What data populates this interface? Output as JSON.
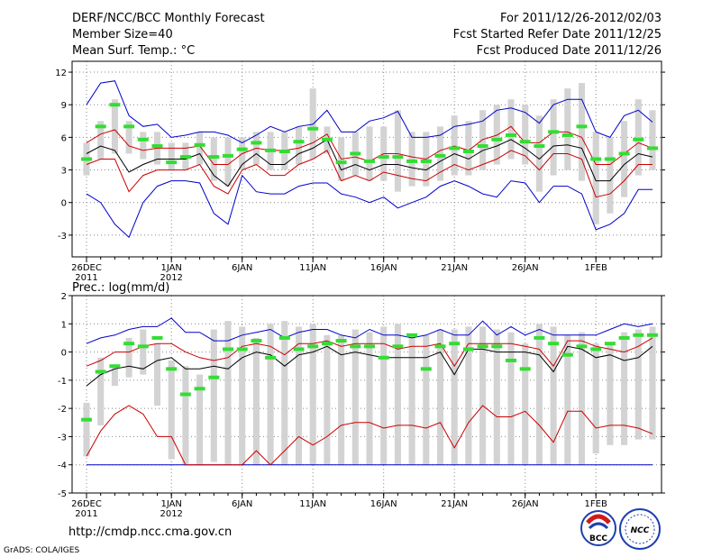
{
  "header": {
    "title": "DERF/NCC/BCC Monthly Forecast",
    "member_size": "Member Size=40",
    "variable": "Mean Surf. Temp.: °C",
    "period": "For 2011/12/26-2012/02/03",
    "fcst_started": "Fcst Started Refer Date 2011/12/25",
    "fcst_produced": "Fcst Produced Date 2011/12/26"
  },
  "footer": {
    "url": "http://cmdp.ncc.cma.gov.cn",
    "credit": "GrADS: COLA/IGES",
    "logo_bcc": "BCC",
    "logo_ncc": "NCC"
  },
  "colors": {
    "mean": "#000000",
    "spread": "#cc0000",
    "extreme": "#0000cc",
    "box": "#d3d3d3",
    "obs": "#33dd33"
  },
  "chart_data": [
    {
      "type": "box-line",
      "title": "Mean Surf. Temp.: °C",
      "ylim": [
        -5,
        13
      ],
      "yticks": [
        -3,
        0,
        3,
        6,
        9,
        12
      ],
      "x_ticks": [
        {
          "day": 1,
          "label": "26DEC",
          "year": "2011"
        },
        {
          "day": 7,
          "label": "1JAN",
          "year": "2012"
        },
        {
          "day": 12,
          "label": "6JAN",
          "year": ""
        },
        {
          "day": 17,
          "label": "11JAN",
          "year": ""
        },
        {
          "day": 22,
          "label": "16JAN",
          "year": ""
        },
        {
          "day": 27,
          "label": "21JAN",
          "year": ""
        },
        {
          "day": 32,
          "label": "26JAN",
          "year": ""
        },
        {
          "day": 37,
          "label": "1FEB",
          "year": ""
        }
      ],
      "series": [
        {
          "name": "max",
          "values": [
            9,
            11,
            11.2,
            8,
            7,
            7.2,
            6,
            6.2,
            6.5,
            6.5,
            6.2,
            5.5,
            6.2,
            7,
            6.5,
            7,
            7.2,
            8.5,
            6.5,
            6.5,
            7.5,
            7.8,
            8.4,
            6,
            6,
            6.2,
            7,
            7.2,
            7.5,
            8.5,
            8.7,
            8.3,
            7.3,
            9,
            9.5,
            9.5,
            6.5,
            6,
            8,
            8.5,
            7.4
          ]
        },
        {
          "name": "p75",
          "values": [
            5.5,
            6.3,
            6.7,
            5.2,
            4.8,
            5,
            5,
            5,
            5.2,
            3.5,
            3.5,
            4.5,
            5,
            4.8,
            4.8,
            5,
            5.5,
            6.3,
            4,
            4.2,
            3.8,
            4.5,
            4.5,
            4.2,
            4,
            4.8,
            5.2,
            4.8,
            5.8,
            6.2,
            7,
            5.5,
            5.5,
            6.5,
            6.5,
            6,
            3.5,
            3.5,
            4.5,
            5.5,
            5
          ]
        },
        {
          "name": "mean",
          "values": [
            4.5,
            5.2,
            4.8,
            2.8,
            3.5,
            4,
            4,
            4,
            4.5,
            2.5,
            1.5,
            3.5,
            4.5,
            3.5,
            3.5,
            4.5,
            5,
            5.8,
            3,
            3.5,
            3,
            3.5,
            3.5,
            3.2,
            3,
            3.8,
            4.5,
            4,
            4.8,
            5.2,
            5.8,
            5,
            4,
            5.2,
            5.3,
            5,
            2,
            2,
            3.5,
            4.5,
            4.2
          ]
        },
        {
          "name": "p25",
          "values": [
            3.5,
            4,
            4,
            1,
            2.5,
            3,
            3,
            3,
            3.5,
            1.5,
            0.8,
            3,
            3.5,
            2.5,
            2.5,
            3.5,
            4,
            4.8,
            2,
            2.5,
            2,
            2.8,
            2.5,
            2.2,
            2,
            2.8,
            3.5,
            3,
            3.5,
            4,
            4.8,
            4.3,
            3,
            4.5,
            4.5,
            4,
            0.5,
            0.8,
            2,
            3.5,
            3.5
          ]
        },
        {
          "name": "min",
          "values": [
            0.8,
            0,
            -2,
            -3.2,
            0,
            1.5,
            2,
            2,
            1.8,
            -1,
            -2,
            2.5,
            1,
            0.8,
            0.8,
            1.5,
            1.8,
            1.8,
            0.8,
            0.5,
            0,
            0.5,
            -0.5,
            0,
            0.5,
            1.5,
            2,
            1.5,
            0.8,
            0.5,
            2,
            1.8,
            0,
            1.5,
            1.5,
            0.8,
            -2.5,
            -2,
            -1,
            1.2,
            1.2
          ]
        },
        {
          "name": "obs",
          "values": [
            4,
            7,
            9,
            7,
            5.8,
            5.2,
            3.7,
            4.2,
            5.3,
            4.2,
            4.3,
            4.9,
            5.5,
            4.8,
            4.7,
            5.6,
            6.8,
            5.8,
            3.7,
            4.5,
            3.8,
            4.2,
            4.2,
            3.8,
            3.8,
            4.3,
            5,
            4.7,
            5.2,
            5.8,
            6.2,
            5.6,
            5.2,
            6.5,
            6.2,
            7,
            4,
            4,
            4.5,
            5.8,
            5
          ]
        },
        {
          "name": "box_top",
          "values": [
            5.5,
            7.5,
            9.5,
            7.5,
            6.5,
            6.5,
            5.5,
            5.5,
            6.5,
            6,
            6,
            6,
            6.5,
            6.5,
            6.5,
            7,
            10.5,
            7,
            6,
            6.5,
            7,
            7,
            8.5,
            6.5,
            6.5,
            7,
            8,
            7.5,
            8.5,
            9,
            9.5,
            9,
            8,
            9.5,
            10.5,
            11,
            6.5,
            6,
            7.5,
            9.5,
            8.5
          ]
        },
        {
          "name": "box_bottom",
          "values": [
            2.5,
            4,
            4.5,
            4.5,
            4,
            3.5,
            3,
            3,
            3.5,
            2,
            1.5,
            3,
            3.5,
            3,
            3,
            3.5,
            4,
            4.5,
            2,
            2.5,
            2,
            2,
            1,
            1.5,
            1.5,
            2,
            2.5,
            2.5,
            3,
            3.5,
            4,
            3.5,
            1,
            2.5,
            3,
            2,
            -2,
            -1,
            0.5,
            2.5,
            3
          ]
        }
      ]
    },
    {
      "type": "box-line",
      "title": "Prec.: log(mm/d)",
      "ylim": [
        -5,
        2
      ],
      "yticks": [
        -5,
        -4,
        -3,
        -2,
        -1,
        0,
        1,
        2
      ],
      "x_ticks": [
        {
          "day": 1,
          "label": "26DEC",
          "year": "2011"
        },
        {
          "day": 7,
          "label": "1JAN",
          "year": "2012"
        },
        {
          "day": 12,
          "label": "6JAN",
          "year": ""
        },
        {
          "day": 17,
          "label": "11JAN",
          "year": ""
        },
        {
          "day": 22,
          "label": "16JAN",
          "year": ""
        },
        {
          "day": 27,
          "label": "21JAN",
          "year": ""
        },
        {
          "day": 32,
          "label": "26JAN",
          "year": ""
        },
        {
          "day": 37,
          "label": "1FEB",
          "year": ""
        }
      ],
      "series": [
        {
          "name": "max",
          "values": [
            0.3,
            0.5,
            0.6,
            0.8,
            0.9,
            0.9,
            1.2,
            0.7,
            0.7,
            0.4,
            0.4,
            0.6,
            0.7,
            0.8,
            0.5,
            0.7,
            0.8,
            0.8,
            0.6,
            0.5,
            0.8,
            0.6,
            0.6,
            0.5,
            0.6,
            0.8,
            0.6,
            0.6,
            1.1,
            0.6,
            0.9,
            0.6,
            0.8,
            0.6,
            0.6,
            0.6,
            0.6,
            0.8,
            1.0,
            0.9,
            1.0
          ]
        },
        {
          "name": "p75",
          "values": [
            -0.5,
            -0.3,
            0,
            0,
            0.2,
            0.3,
            0.3,
            0,
            -0.2,
            -0.3,
            -0.2,
            0.2,
            0.3,
            0.2,
            -0.1,
            0.3,
            0.3,
            0.4,
            0.2,
            0.3,
            0.3,
            0.3,
            0.1,
            0.2,
            0.2,
            0.3,
            -0.5,
            0.3,
            0.3,
            0.3,
            0.3,
            0.2,
            0.1,
            -0.5,
            0.4,
            0.4,
            0.2,
            0.1,
            0.0,
            0.2,
            0.5
          ]
        },
        {
          "name": "mean",
          "values": [
            -1.2,
            -0.8,
            -0.6,
            -0.5,
            -0.6,
            -0.3,
            -0.2,
            -0.6,
            -0.6,
            -0.5,
            -0.6,
            -0.2,
            0,
            -0.1,
            -0.5,
            -0.1,
            0,
            0.2,
            -0.1,
            0,
            -0.1,
            -0.2,
            -0.2,
            -0.2,
            -0.2,
            0,
            -0.8,
            0.1,
            0.1,
            0,
            0,
            0,
            -0.1,
            -0.7,
            0.2,
            0.1,
            -0.2,
            -0.1,
            -0.3,
            -0.2,
            0.2
          ]
        },
        {
          "name": "p25",
          "values": [
            -3.7,
            -2.8,
            -2.2,
            -1.9,
            -2.2,
            -3,
            -3,
            -4,
            -4,
            -4,
            -4,
            -4,
            -3.5,
            -4,
            -3.5,
            -3,
            -3.3,
            -3,
            -2.6,
            -2.5,
            -2.5,
            -2.7,
            -2.6,
            -2.6,
            -2.7,
            -2.5,
            -3.4,
            -2.5,
            -1.9,
            -2.3,
            -2.3,
            -2.1,
            -2.6,
            -3.2,
            -2.1,
            -2.1,
            -2.7,
            -2.6,
            -2.6,
            -2.7,
            -2.9
          ]
        },
        {
          "name": "min",
          "values": [
            -4,
            -4,
            -4,
            -4,
            -4,
            -4,
            -4,
            -4,
            -4,
            -4,
            -4,
            -4,
            -4,
            -4,
            -4,
            -4,
            -4,
            -4,
            -4,
            -4,
            -4,
            -4,
            -4,
            -4,
            -4,
            -4,
            -4,
            -4,
            -4,
            -4,
            -4,
            -4,
            -4,
            -4,
            -4,
            -4,
            -4,
            -4,
            -4,
            -4,
            -4
          ]
        },
        {
          "name": "obs",
          "values": [
            -2.4,
            -0.7,
            -0.5,
            0.3,
            0.2,
            0.5,
            -0.6,
            -1.5,
            -1.3,
            -0.9,
            0.1,
            0.1,
            0.4,
            -0.2,
            0.5,
            0.1,
            0.2,
            0.3,
            0.4,
            0.2,
            0.2,
            -0.2,
            0.2,
            0.6,
            -0.6,
            0.2,
            0.3,
            0.1,
            0.2,
            0.2,
            -0.3,
            -0.6,
            0.5,
            0.3,
            -0.1,
            0.2,
            0.1,
            0.3,
            0.5,
            0.6,
            0.6
          ]
        },
        {
          "name": "box_top",
          "values": [
            -1.8,
            -0.2,
            -0.5,
            0.5,
            0.8,
            0.3,
            -0.3,
            -0.5,
            -0.8,
            0.8,
            1.1,
            0.9,
            0.5,
            1.0,
            1.1,
            0.9,
            1.0,
            0.6,
            0.6,
            0.8,
            0.7,
            0.9,
            1.0,
            0.5,
            0.6,
            0.8,
            0.8,
            0.9,
            0.9,
            0.8,
            0.7,
            0.3,
            1.0,
            0.9,
            0.6,
            0.7,
            0.3,
            0.3,
            0.7,
            0.8,
            0.9
          ]
        },
        {
          "name": "box_bottom",
          "values": [
            -3.7,
            -2.6,
            -1.2,
            -0.9,
            -0.8,
            -1.9,
            -3.8,
            -4,
            -4,
            -3.9,
            -4,
            -4,
            -4,
            -4,
            -4,
            -4,
            -4,
            -4,
            -4,
            -4,
            -4,
            -4,
            -4,
            -4,
            -4,
            -4,
            -4,
            -4,
            -4,
            -4,
            -4,
            -4,
            -4,
            -4,
            -4,
            -4,
            -3.6,
            -3.3,
            -3.3,
            -3.1,
            -3.1
          ]
        }
      ]
    }
  ]
}
